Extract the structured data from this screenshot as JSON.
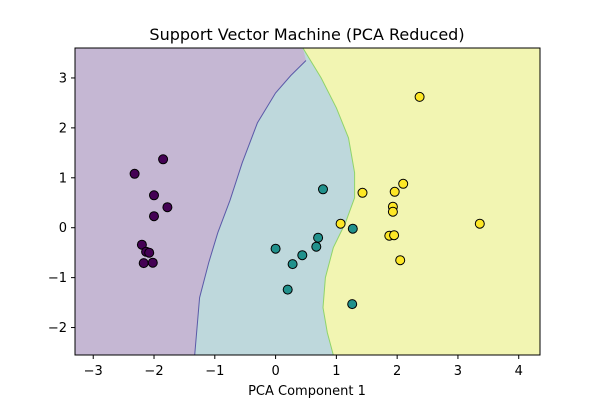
{
  "chart_data": {
    "type": "scatter",
    "title": "Support Vector Machine (PCA Reduced)",
    "xlabel": "PCA Component 1",
    "ylabel": "",
    "xlim": [
      -3.3,
      4.35
    ],
    "ylim": [
      -2.55,
      3.6
    ],
    "xticks": [
      -3,
      -2,
      -1,
      0,
      1,
      2,
      3,
      4
    ],
    "yticks": [
      -2,
      -1,
      0,
      1,
      2,
      3
    ],
    "grid": false,
    "regions": {
      "class0_fill": "#c5b7d3",
      "class1_fill": "#bed8dc",
      "class2_fill": "#f2f5b2",
      "boundary01_color": "#5a5aa8",
      "boundary12_color": "#8fd46a",
      "boundary01": [
        [
          0.5,
          3.35
        ],
        [
          0.25,
          3.05
        ],
        [
          0.0,
          2.7
        ],
        [
          -0.3,
          2.1
        ],
        [
          -0.55,
          1.3
        ],
        [
          -0.75,
          0.55
        ],
        [
          -0.95,
          -0.1
        ],
        [
          -1.1,
          -0.7
        ],
        [
          -1.25,
          -1.4
        ],
        [
          -1.33,
          -2.55
        ]
      ],
      "boundary12": [
        [
          0.45,
          3.6
        ],
        [
          0.75,
          3.0
        ],
        [
          1.0,
          2.4
        ],
        [
          1.2,
          1.8
        ],
        [
          1.3,
          1.1
        ],
        [
          1.3,
          0.6
        ],
        [
          1.15,
          0.1
        ],
        [
          0.95,
          -0.4
        ],
        [
          0.82,
          -1.0
        ],
        [
          0.78,
          -1.6
        ],
        [
          0.85,
          -2.1
        ],
        [
          0.95,
          -2.55
        ]
      ]
    },
    "series": [
      {
        "color": "#440154",
        "points": [
          [
            -2.32,
            1.08
          ],
          [
            -1.85,
            1.37
          ],
          [
            -2.0,
            0.65
          ],
          [
            -2.0,
            0.23
          ],
          [
            -1.78,
            0.41
          ],
          [
            -2.2,
            -0.34
          ],
          [
            -2.13,
            -0.48
          ],
          [
            -2.08,
            -0.5
          ],
          [
            -2.17,
            -0.71
          ],
          [
            -2.02,
            -0.7
          ]
        ]
      },
      {
        "color": "#21918c",
        "points": [
          [
            0.78,
            0.77
          ],
          [
            1.27,
            -0.02
          ],
          [
            0.0,
            -0.42
          ],
          [
            0.28,
            -0.73
          ],
          [
            0.44,
            -0.55
          ],
          [
            0.7,
            -0.2
          ],
          [
            0.67,
            -0.38
          ],
          [
            0.2,
            -1.24
          ],
          [
            1.26,
            -1.53
          ]
        ]
      },
      {
        "color": "#fde725",
        "points": [
          [
            2.37,
            2.62
          ],
          [
            2.1,
            0.88
          ],
          [
            1.96,
            0.72
          ],
          [
            1.43,
            0.7
          ],
          [
            1.07,
            0.08
          ],
          [
            1.93,
            0.42
          ],
          [
            1.93,
            0.32
          ],
          [
            1.87,
            -0.16
          ],
          [
            1.95,
            -0.15
          ],
          [
            2.05,
            -0.65
          ],
          [
            3.36,
            0.08
          ]
        ]
      }
    ]
  }
}
